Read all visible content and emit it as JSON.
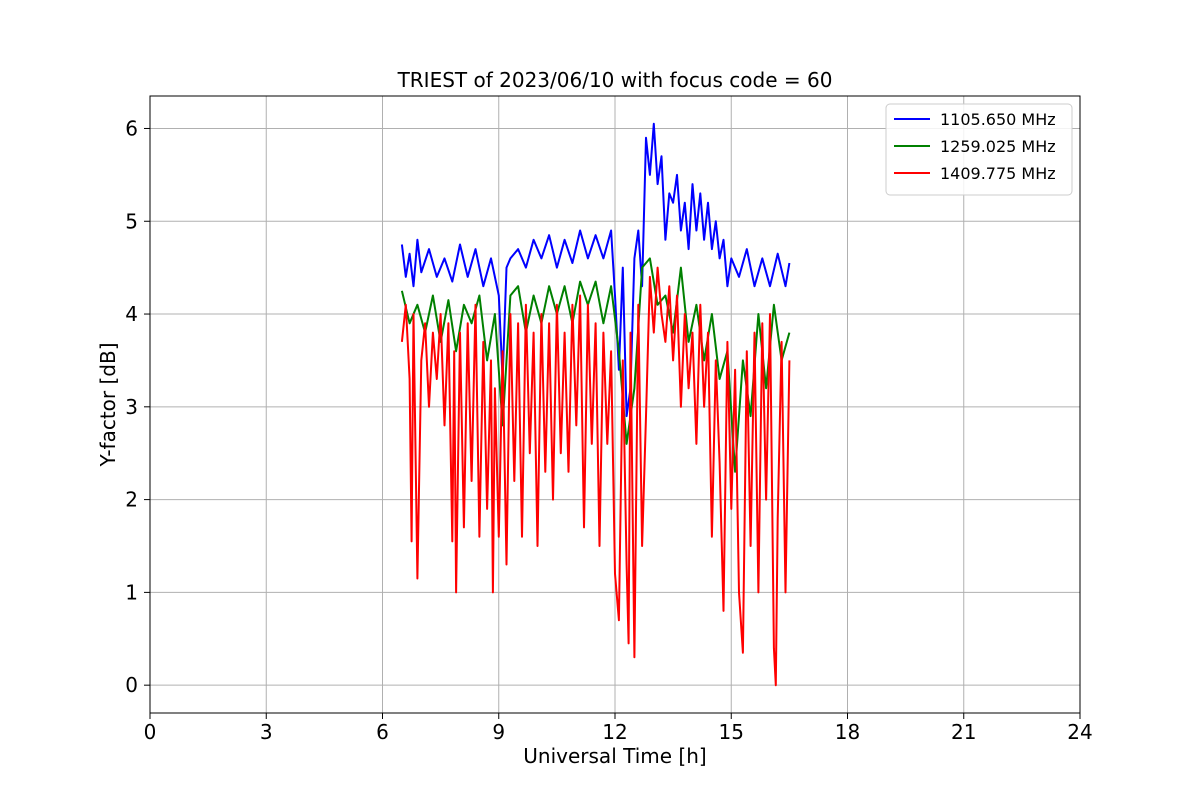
{
  "chart_data": {
    "type": "line",
    "title": "TRIEST of 2023/06/10 with focus code = 60",
    "xlabel": "Universal Time [h]",
    "ylabel": "Y-factor [dB]",
    "xlim": [
      0,
      24
    ],
    "ylim": [
      -0.3,
      6.35
    ],
    "xticks": [
      0,
      3,
      6,
      9,
      12,
      15,
      18,
      21,
      24
    ],
    "yticks": [
      0,
      1,
      2,
      3,
      4,
      5,
      6
    ],
    "grid": true,
    "legend_position": "top-right",
    "series": [
      {
        "name": "1105.650 MHz",
        "color": "#0000ff",
        "x": [
          6.5,
          6.6,
          6.7,
          6.8,
          6.9,
          7.0,
          7.2,
          7.4,
          7.6,
          7.8,
          8.0,
          8.2,
          8.4,
          8.6,
          8.8,
          9.0,
          9.1,
          9.2,
          9.3,
          9.5,
          9.7,
          9.9,
          10.1,
          10.3,
          10.5,
          10.7,
          10.9,
          11.1,
          11.3,
          11.5,
          11.7,
          11.9,
          12.0,
          12.1,
          12.2,
          12.3,
          12.4,
          12.5,
          12.6,
          12.7,
          12.8,
          12.9,
          13.0,
          13.1,
          13.2,
          13.3,
          13.4,
          13.5,
          13.6,
          13.7,
          13.8,
          13.9,
          14.0,
          14.1,
          14.2,
          14.3,
          14.4,
          14.5,
          14.6,
          14.7,
          14.8,
          14.9,
          15.0,
          15.2,
          15.4,
          15.6,
          15.8,
          16.0,
          16.2,
          16.4,
          16.5
        ],
        "y": [
          4.75,
          4.4,
          4.65,
          4.3,
          4.8,
          4.45,
          4.7,
          4.4,
          4.6,
          4.35,
          4.75,
          4.4,
          4.7,
          4.3,
          4.6,
          4.2,
          3.3,
          4.5,
          4.6,
          4.7,
          4.5,
          4.8,
          4.6,
          4.85,
          4.5,
          4.8,
          4.55,
          4.9,
          4.6,
          4.85,
          4.6,
          4.9,
          4.2,
          3.4,
          4.5,
          2.9,
          3.2,
          4.6,
          4.9,
          4.3,
          5.9,
          5.5,
          6.05,
          5.4,
          5.7,
          4.8,
          5.3,
          5.2,
          5.5,
          4.9,
          5.2,
          4.7,
          5.4,
          4.9,
          5.3,
          4.8,
          5.2,
          4.7,
          5.0,
          4.6,
          4.8,
          4.3,
          4.6,
          4.4,
          4.7,
          4.3,
          4.6,
          4.3,
          4.65,
          4.3,
          4.55
        ]
      },
      {
        "name": "1259.025 MHz",
        "color": "#008000",
        "x": [
          6.5,
          6.7,
          6.9,
          7.1,
          7.3,
          7.5,
          7.7,
          7.9,
          8.1,
          8.3,
          8.5,
          8.7,
          8.9,
          9.1,
          9.3,
          9.5,
          9.7,
          9.9,
          10.1,
          10.3,
          10.5,
          10.7,
          10.9,
          11.1,
          11.3,
          11.5,
          11.7,
          11.9,
          12.1,
          12.3,
          12.5,
          12.7,
          12.9,
          13.1,
          13.3,
          13.5,
          13.7,
          13.9,
          14.1,
          14.3,
          14.5,
          14.7,
          14.9,
          15.1,
          15.3,
          15.5,
          15.7,
          15.9,
          16.1,
          16.3,
          16.5
        ],
        "y": [
          4.25,
          3.9,
          4.1,
          3.8,
          4.2,
          3.7,
          4.15,
          3.6,
          4.1,
          3.9,
          4.2,
          3.5,
          4.0,
          2.8,
          4.2,
          4.3,
          3.8,
          4.2,
          3.9,
          4.3,
          4.0,
          4.3,
          3.9,
          4.35,
          4.1,
          4.35,
          3.9,
          4.3,
          3.6,
          2.6,
          3.2,
          4.5,
          4.6,
          4.1,
          4.2,
          3.8,
          4.5,
          3.7,
          4.1,
          3.5,
          4.0,
          3.3,
          3.6,
          2.3,
          3.5,
          2.9,
          4.0,
          3.2,
          4.1,
          3.5,
          3.8
        ]
      },
      {
        "name": "1409.775 MHz",
        "color": "#ff0000",
        "x": [
          6.5,
          6.6,
          6.7,
          6.75,
          6.8,
          6.9,
          7.0,
          7.1,
          7.2,
          7.3,
          7.4,
          7.5,
          7.6,
          7.7,
          7.8,
          7.85,
          7.9,
          8.0,
          8.1,
          8.2,
          8.3,
          8.4,
          8.5,
          8.6,
          8.7,
          8.8,
          8.85,
          8.9,
          9.0,
          9.1,
          9.2,
          9.3,
          9.4,
          9.5,
          9.6,
          9.7,
          9.8,
          9.9,
          10.0,
          10.1,
          10.2,
          10.3,
          10.4,
          10.5,
          10.6,
          10.7,
          10.8,
          10.9,
          11.0,
          11.1,
          11.2,
          11.3,
          11.4,
          11.5,
          11.6,
          11.7,
          11.8,
          11.9,
          12.0,
          12.1,
          12.2,
          12.3,
          12.35,
          12.4,
          12.5,
          12.6,
          12.7,
          12.8,
          12.9,
          13.0,
          13.1,
          13.2,
          13.3,
          13.4,
          13.5,
          13.6,
          13.7,
          13.8,
          13.9,
          14.0,
          14.1,
          14.2,
          14.3,
          14.4,
          14.5,
          14.6,
          14.7,
          14.8,
          14.9,
          15.0,
          15.1,
          15.2,
          15.3,
          15.4,
          15.5,
          15.6,
          15.7,
          15.8,
          15.9,
          16.0,
          16.1,
          16.15,
          16.2,
          16.3,
          16.4,
          16.5
        ],
        "y": [
          3.7,
          4.1,
          3.3,
          1.55,
          4.0,
          1.15,
          3.5,
          3.9,
          3.0,
          3.8,
          3.3,
          4.0,
          2.8,
          3.9,
          1.55,
          3.6,
          1.0,
          3.8,
          1.7,
          3.9,
          2.2,
          4.1,
          1.6,
          3.7,
          1.9,
          3.5,
          1.0,
          3.2,
          1.6,
          3.6,
          1.3,
          4.0,
          2.2,
          3.9,
          1.6,
          4.1,
          2.5,
          3.8,
          1.5,
          4.0,
          2.3,
          3.9,
          2.0,
          4.1,
          2.5,
          3.8,
          2.3,
          4.1,
          2.8,
          4.2,
          1.7,
          4.1,
          2.6,
          3.9,
          1.5,
          3.8,
          2.6,
          3.6,
          1.2,
          0.7,
          3.5,
          1.3,
          0.45,
          3.8,
          0.3,
          4.1,
          1.5,
          2.9,
          4.4,
          3.8,
          4.5,
          4.0,
          3.7,
          4.3,
          3.5,
          4.2,
          3.0,
          4.0,
          3.2,
          3.8,
          2.6,
          4.1,
          3.0,
          3.8,
          1.6,
          3.5,
          2.4,
          0.8,
          3.7,
          1.9,
          3.4,
          1.0,
          0.35,
          3.6,
          1.5,
          3.8,
          1.0,
          3.9,
          2.0,
          4.0,
          0.4,
          0.0,
          1.8,
          3.7,
          1.0,
          3.5
        ]
      }
    ]
  }
}
